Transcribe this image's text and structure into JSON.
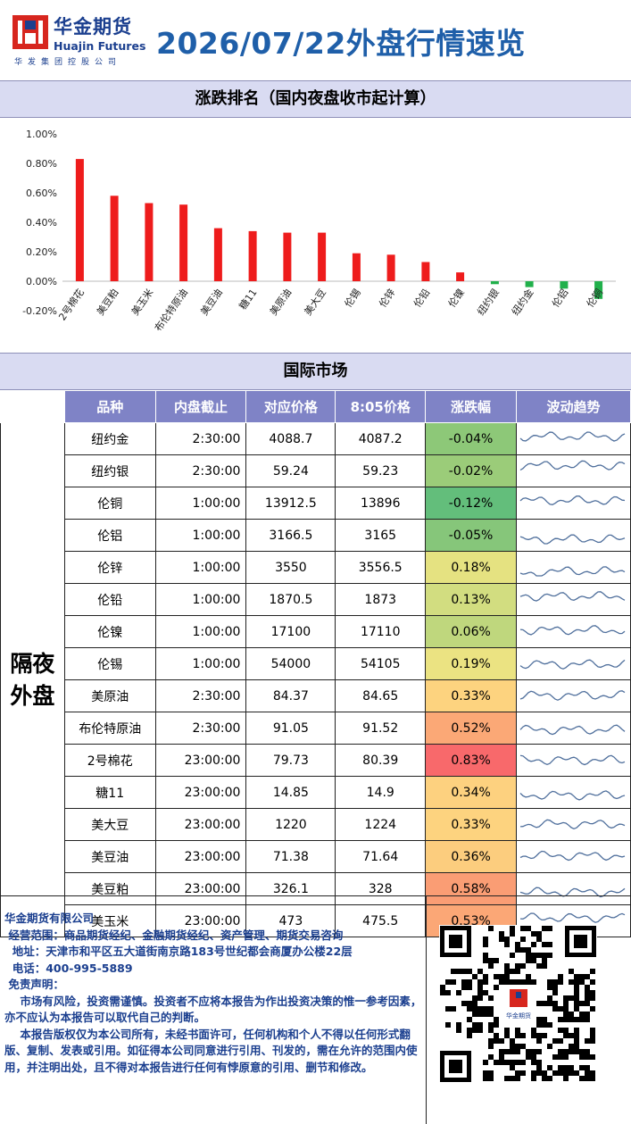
{
  "header": {
    "logo_cn": "华金期货",
    "logo_en": "Huajin Futures",
    "logo_sub": "华发集团控股公司",
    "title": "2026/07/22外盘行情速览"
  },
  "chart_section": {
    "title": "涨跌排名（国内夜盘收市起计算）"
  },
  "chart_data": {
    "type": "bar",
    "categories": [
      "2号棉花",
      "美豆粕",
      "美玉米",
      "布伦特原油",
      "美豆油",
      "糖11",
      "美原油",
      "美大豆",
      "伦锡",
      "伦锌",
      "伦铅",
      "伦镍",
      "纽约银",
      "纽约金",
      "伦铝",
      "伦铜"
    ],
    "values": [
      0.83,
      0.58,
      0.53,
      0.52,
      0.36,
      0.34,
      0.33,
      0.33,
      0.19,
      0.18,
      0.13,
      0.06,
      -0.02,
      -0.04,
      -0.05,
      -0.12
    ],
    "ylim": [
      -0.2,
      1.0
    ],
    "yticks": [
      "1.00%",
      "0.80%",
      "0.60%",
      "0.40%",
      "0.20%",
      "0.00%",
      "-0.20%"
    ],
    "colors": {
      "positive": "#ee1c1c",
      "negative": "#21b04b"
    }
  },
  "table_section": {
    "title": "国际市场",
    "headers": [
      "品种",
      "内盘截止",
      "对应价格",
      "8:05价格",
      "涨跌幅",
      "波动趋势"
    ],
    "group_label_line1": "隔夜",
    "group_label_line2": "外盘",
    "rows": [
      {
        "name": "纽约金",
        "time": "2:30:00",
        "ref": "4088.7",
        "price": "4087.2",
        "chg": "-0.04%",
        "color": "#8dc878"
      },
      {
        "name": "纽约银",
        "time": "2:30:00",
        "ref": "59.24",
        "price": "59.23",
        "chg": "-0.02%",
        "color": "#9bcc79"
      },
      {
        "name": "伦铜",
        "time": "1:00:00",
        "ref": "13912.5",
        "price": "13896",
        "chg": "-0.12%",
        "color": "#63be7b"
      },
      {
        "name": "伦铝",
        "time": "1:00:00",
        "ref": "3166.5",
        "price": "3165",
        "chg": "-0.05%",
        "color": "#86c67a"
      },
      {
        "name": "伦锌",
        "time": "1:00:00",
        "ref": "3550",
        "price": "3556.5",
        "chg": "0.18%",
        "color": "#e5e281"
      },
      {
        "name": "伦铅",
        "time": "1:00:00",
        "ref": "1870.5",
        "price": "1873",
        "chg": "0.13%",
        "color": "#d2dd80"
      },
      {
        "name": "伦镍",
        "time": "1:00:00",
        "ref": "17100",
        "price": "17110",
        "chg": "0.06%",
        "color": "#bfd77d"
      },
      {
        "name": "伦锡",
        "time": "1:00:00",
        "ref": "54000",
        "price": "54105",
        "chg": "0.19%",
        "color": "#ebe382"
      },
      {
        "name": "美原油",
        "time": "2:30:00",
        "ref": "84.37",
        "price": "84.65",
        "chg": "0.33%",
        "color": "#fdd37f"
      },
      {
        "name": "布伦特原油",
        "time": "2:30:00",
        "ref": "91.05",
        "price": "91.52",
        "chg": "0.52%",
        "color": "#fba876"
      },
      {
        "name": "2号棉花",
        "time": "23:00:00",
        "ref": "79.73",
        "price": "80.39",
        "chg": "0.83%",
        "color": "#f8696b"
      },
      {
        "name": "糖11",
        "time": "23:00:00",
        "ref": "14.85",
        "price": "14.9",
        "chg": "0.34%",
        "color": "#fdd17f"
      },
      {
        "name": "美大豆",
        "time": "23:00:00",
        "ref": "1220",
        "price": "1224",
        "chg": "0.33%",
        "color": "#fdd37f"
      },
      {
        "name": "美豆油",
        "time": "23:00:00",
        "ref": "71.38",
        "price": "71.64",
        "chg": "0.36%",
        "color": "#fccd7e"
      },
      {
        "name": "美豆粕",
        "time": "23:00:00",
        "ref": "326.1",
        "price": "328",
        "chg": "0.58%",
        "color": "#fa9d74"
      },
      {
        "name": "美玉米",
        "time": "23:00:00",
        "ref": "473",
        "price": "475.5",
        "chg": "0.53%",
        "color": "#fba776"
      }
    ]
  },
  "footer": {
    "company": "华金期货有限公司",
    "scope": " 经营范围：商品期货经纪、金融期货经纪、资产管理、期货交易咨询",
    "address": "  地址：天津市和平区五大道街南京路183号世纪都会商厦办公楼22层",
    "phone": "  电话：400-995-5889",
    "disclaimer_title": " 免责声明：",
    "disclaimer_1": "    市场有风险，投资需谨慎。投资者不应将本报告为作出投资决策的惟一参考因素，亦不应认为本报告可以取代自己的判断。",
    "disclaimer_2": "    本报告版权仅为本公司所有，未经书面许可，任何机构和个人不得以任何形式翻版、复制、发表或引用。如征得本公司同意进行引用、刊发的，需在允许的范围内使用，并注明出处，且不得对本报告进行任何有悖原意的引用、删节和修改。",
    "qr_caption": "华金期货"
  }
}
